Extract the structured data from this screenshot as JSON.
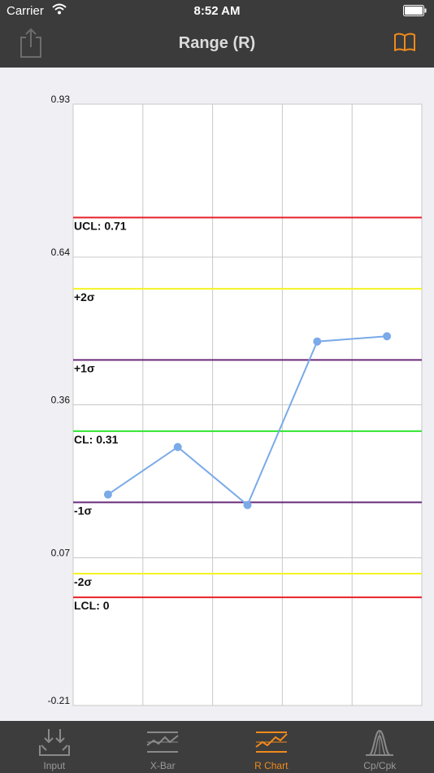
{
  "status_bar": {
    "carrier": "Carrier",
    "time": "8:52 AM"
  },
  "nav": {
    "title": "Range (R)",
    "left_icon": "share-icon",
    "right_icon": "book-icon"
  },
  "tabs": [
    {
      "label": "Input",
      "icon": "input-icon",
      "active": false
    },
    {
      "label": "X-Bar",
      "icon": "xbar-chart-icon",
      "active": false
    },
    {
      "label": "R Chart",
      "icon": "r-chart-icon",
      "active": true
    },
    {
      "label": "Cp/Cpk",
      "icon": "cpk-icon",
      "active": false
    }
  ],
  "colors": {
    "background": "#efeff4",
    "bar": "#3b3b3b",
    "accent": "#f08a1c",
    "series": "#7aaae8",
    "limit": "#e8222a",
    "two_sigma": "#f4f423",
    "one_sigma": "#6a2b7a",
    "center": "#2ee62e"
  },
  "chart_data": {
    "type": "line",
    "x": [
      1,
      2,
      3,
      4,
      5
    ],
    "series": [
      {
        "values": [
          0.19,
          0.28,
          0.17,
          0.48,
          0.49
        ]
      }
    ],
    "ylim": [
      -0.21,
      0.93
    ],
    "y_ticks": [
      "0.93",
      "0.64",
      "0.36",
      "0.07",
      "-0.21"
    ],
    "y_tick_values": [
      0.93,
      0.64,
      0.36,
      0.07,
      -0.21
    ],
    "grid": true,
    "x_gridlines": 5,
    "reference_lines": [
      {
        "label": "UCL: 0.71",
        "value": 0.715,
        "color": "#e8222a"
      },
      {
        "label": "+2σ",
        "value": 0.58,
        "color": "#f4f423"
      },
      {
        "label": "+1σ",
        "value": 0.445,
        "color": "#6a2b7a"
      },
      {
        "label": "CL: 0.31",
        "value": 0.31,
        "color": "#2ee62e"
      },
      {
        "label": "-1σ",
        "value": 0.175,
        "color": "#6a2b7a"
      },
      {
        "label": "-2σ",
        "value": 0.04,
        "color": "#f4f423"
      },
      {
        "label": "LCL: 0",
        "value": -0.005,
        "color": "#e8222a"
      }
    ]
  }
}
